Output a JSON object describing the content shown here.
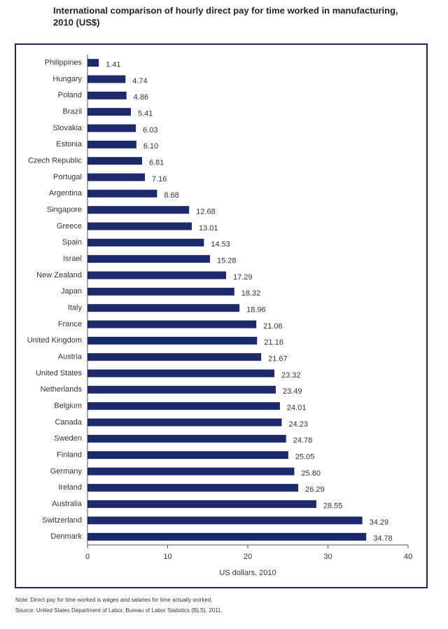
{
  "chart_data": {
    "type": "barh",
    "title": [
      "International comparison of hourly direct pay for time worked in manufacturing,",
      "2010 (US$)"
    ],
    "categories": [
      "Philippines",
      "Hungary",
      "Poland",
      "Brazil",
      "Slovakia",
      "Estonia",
      "Czech Republic",
      "Portugal",
      "Argentina",
      "Singapore",
      "Greece",
      "Spain",
      "Israel",
      "New Zealand",
      "Japan",
      "Italy",
      "France",
      "United Kingdom",
      "Austria",
      "United States",
      "Netherlands",
      "Belgium",
      "Canada",
      "Sweden",
      "Finland",
      "Germany",
      "Ireland",
      "Australia",
      "Switzerland",
      "Denmark"
    ],
    "values": [
      1.41,
      4.74,
      4.86,
      5.41,
      6.03,
      6.1,
      6.81,
      7.16,
      8.68,
      12.68,
      13.01,
      14.53,
      15.28,
      17.29,
      18.32,
      18.96,
      21.06,
      21.16,
      21.67,
      23.32,
      23.49,
      24.01,
      24.23,
      24.78,
      25.05,
      25.8,
      26.29,
      28.55,
      34.29,
      34.78
    ],
    "value_labels": [
      "1.41",
      "4.74",
      "4.86",
      "5.41",
      "6.03",
      "6.10",
      "6.81",
      "7.16",
      "8.68",
      "12.68",
      "13.01",
      "14.53",
      "15.28",
      "17.29",
      "18.32",
      "18.96",
      "21.06",
      "21.16",
      "21.67",
      "23.32",
      "23.49",
      "24.01",
      "24.23",
      "24.78",
      "25.05",
      "25.80",
      "26.29",
      "28.55",
      "34.29",
      "34.78"
    ],
    "color": "#1c2a6b",
    "xlim": [
      0,
      40
    ],
    "xticks": [
      0,
      10,
      20,
      30,
      40
    ],
    "xlabel": "US dollars, 2010",
    "note": "Note: Direct pay for time worked is wages and salaries for time actually worked.",
    "source": "Source: United States Department of Labor, Bureau of Labor Statistics (BLS), 2011."
  }
}
